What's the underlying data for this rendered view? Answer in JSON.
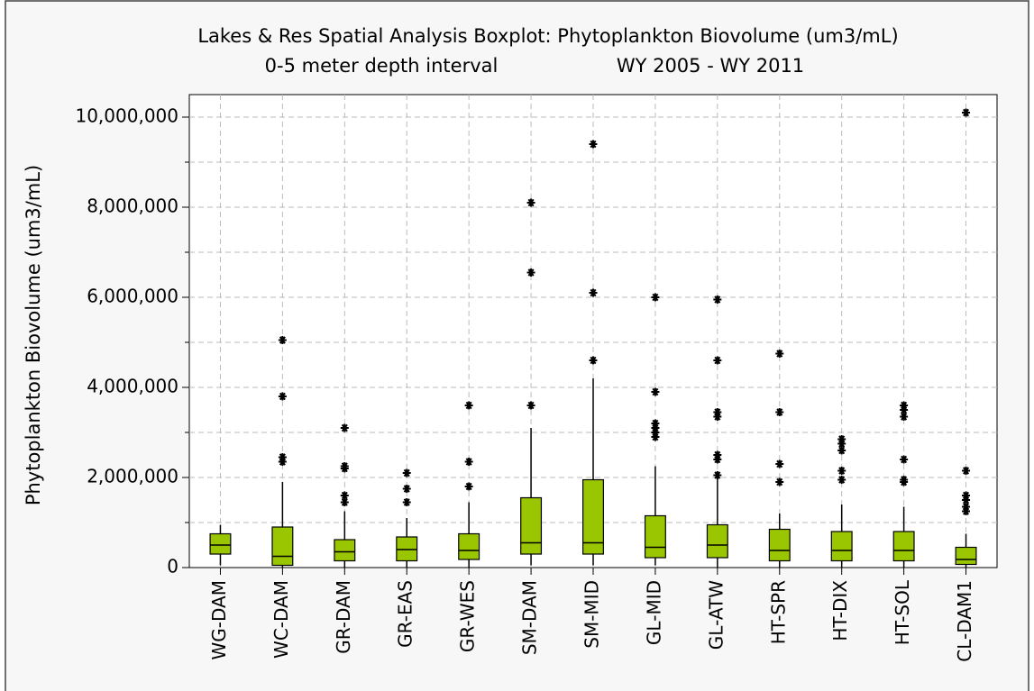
{
  "chart_data": {
    "type": "boxplot",
    "title": "Lakes & Res Spatial Analysis Boxplot: Phytoplankton Biovolume (um3/mL)",
    "subtitle": "0-5 meter depth interval",
    "period": "WY 2005 - WY 2011",
    "y_label": "Phytoplankton Biovolume (um3/mL)",
    "color": "#99c600",
    "grid": true,
    "ylim": [
      0,
      10500000
    ],
    "yticks": [
      0,
      {
        "value": 2000000,
        "label": "2,000,000"
      },
      {
        "value": 4000000,
        "label": "4,000,000"
      },
      {
        "value": 6000000,
        "label": "6,000,000"
      },
      {
        "value": 8000000,
        "label": "8,000,000"
      },
      {
        "value": 10000000,
        "label": "10,000,000"
      }
    ],
    "minor_yticks": [
      1000000,
      3000000,
      5000000,
      7000000,
      9000000
    ],
    "categories": [
      "WG-DAM",
      "WC-DAM",
      "GR-DAM",
      "GR-EAS",
      "GR-WES",
      "SM-DAM",
      "SM-MID",
      "GL-MID",
      "GL-ATW",
      "HT-SPR",
      "HT-DIX",
      "HT-SOL",
      "CL-DAM1"
    ],
    "boxes": [
      {
        "min": 50000,
        "q1": 300000,
        "median": 500000,
        "q3": 750000,
        "max": 950000,
        "outliers": []
      },
      {
        "min": 0,
        "q1": 50000,
        "median": 250000,
        "q3": 900000,
        "max": 1900000,
        "outliers": [
          2350000,
          2450000,
          3800000,
          5050000
        ]
      },
      {
        "min": 0,
        "q1": 150000,
        "median": 350000,
        "q3": 620000,
        "max": 1250000,
        "outliers": [
          1450000,
          1600000,
          2200000,
          2250000,
          3100000
        ]
      },
      {
        "min": 0,
        "q1": 150000,
        "median": 400000,
        "q3": 680000,
        "max": 1100000,
        "outliers": [
          1450000,
          1750000,
          2100000
        ]
      },
      {
        "min": 0,
        "q1": 180000,
        "median": 380000,
        "q3": 750000,
        "max": 1450000,
        "outliers": [
          1800000,
          2350000,
          3600000
        ]
      },
      {
        "min": 50000,
        "q1": 300000,
        "median": 550000,
        "q3": 1550000,
        "max": 3100000,
        "outliers": [
          3600000,
          6550000,
          8100000
        ]
      },
      {
        "min": 50000,
        "q1": 300000,
        "median": 550000,
        "q3": 1950000,
        "max": 4200000,
        "outliers": [
          4600000,
          6100000,
          9400000
        ]
      },
      {
        "min": 50000,
        "q1": 220000,
        "median": 450000,
        "q3": 1150000,
        "max": 2250000,
        "outliers": [
          2900000,
          3000000,
          3100000,
          3200000,
          3900000,
          6000000
        ]
      },
      {
        "min": 0,
        "q1": 220000,
        "median": 500000,
        "q3": 950000,
        "max": 2000000,
        "outliers": [
          2050000,
          2400000,
          2500000,
          3350000,
          3450000,
          4600000,
          5950000
        ]
      },
      {
        "min": 0,
        "q1": 150000,
        "median": 380000,
        "q3": 850000,
        "max": 1200000,
        "outliers": [
          1900000,
          2300000,
          3450000,
          4750000
        ]
      },
      {
        "min": 0,
        "q1": 150000,
        "median": 380000,
        "q3": 800000,
        "max": 1400000,
        "outliers": [
          1950000,
          2150000,
          2600000,
          2750000,
          2850000
        ]
      },
      {
        "min": 0,
        "q1": 150000,
        "median": 380000,
        "q3": 800000,
        "max": 1350000,
        "outliers": [
          1900000,
          1950000,
          2400000,
          3350000,
          3500000,
          3600000
        ]
      },
      {
        "min": 0,
        "q1": 70000,
        "median": 180000,
        "q3": 450000,
        "max": 750000,
        "outliers": [
          1250000,
          1350000,
          1500000,
          1600000,
          2150000,
          10100000
        ]
      }
    ]
  }
}
